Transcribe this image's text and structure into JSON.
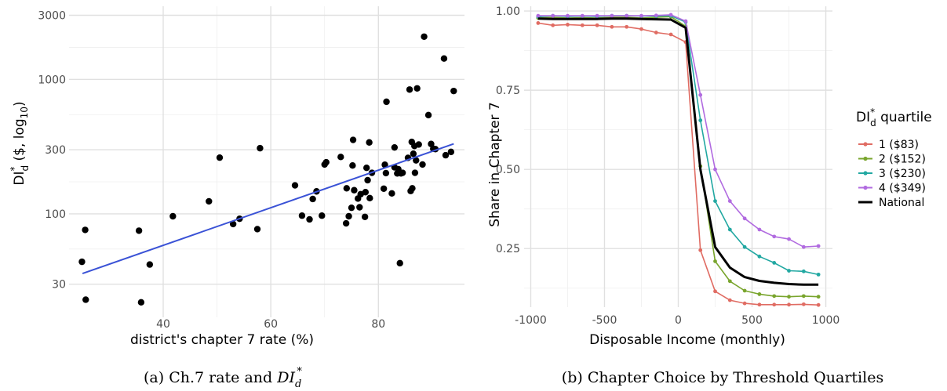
{
  "chart_data": [
    {
      "type": "scatter",
      "panel_caption": "(a) Ch.7 rate and ",
      "caption_math": "DI",
      "caption_math_sub": "d",
      "caption_math_sup": "*",
      "xlabel": "district's chapter 7 rate (%)",
      "ylabel": {
        "base": "DI",
        "sup": "*",
        "sub": "d",
        "rest": " ($, log",
        "log_sub": "10",
        "close": ")"
      },
      "x_ticks": [
        40,
        60,
        80
      ],
      "y_ticks": [
        30,
        100,
        300,
        1000,
        3000
      ],
      "y_tick_labels": [
        "30",
        "100",
        "300",
        "1000",
        "3000"
      ],
      "xlim": [
        22.5,
        96
      ],
      "ylim": [
        17,
        3500
      ],
      "y_scale": "log10",
      "points": [
        [
          24.9,
          44
        ],
        [
          25.5,
          76
        ],
        [
          25.6,
          23
        ],
        [
          35.5,
          75
        ],
        [
          35.9,
          22
        ],
        [
          37.5,
          42
        ],
        [
          41.8,
          96
        ],
        [
          48.5,
          124
        ],
        [
          50.5,
          262
        ],
        [
          53,
          84
        ],
        [
          54.2,
          92
        ],
        [
          57.5,
          77
        ],
        [
          58,
          308
        ],
        [
          64.5,
          163
        ],
        [
          65.8,
          97
        ],
        [
          67.2,
          91
        ],
        [
          67.8,
          129
        ],
        [
          68.5,
          147
        ],
        [
          69.5,
          97
        ],
        [
          70,
          233
        ],
        [
          70.3,
          242
        ],
        [
          73,
          265
        ],
        [
          74,
          85
        ],
        [
          74.1,
          155
        ],
        [
          74.5,
          96
        ],
        [
          75,
          111
        ],
        [
          75.2,
          229
        ],
        [
          75.3,
          355
        ],
        [
          75.5,
          150
        ],
        [
          76.2,
          130
        ],
        [
          76.5,
          112
        ],
        [
          76.7,
          140
        ],
        [
          77.5,
          95
        ],
        [
          77.6,
          145
        ],
        [
          77.8,
          220
        ],
        [
          78,
          178
        ],
        [
          78.3,
          340
        ],
        [
          78.4,
          131
        ],
        [
          78.8,
          202
        ],
        [
          81,
          154
        ],
        [
          81.2,
          232
        ],
        [
          81.4,
          201
        ],
        [
          81.5,
          682
        ],
        [
          82.5,
          142
        ],
        [
          83,
          312
        ],
        [
          83,
          222
        ],
        [
          83.5,
          200
        ],
        [
          83.7,
          215
        ],
        [
          84,
          43
        ],
        [
          84.2,
          200
        ],
        [
          84.5,
          202
        ],
        [
          85.5,
          261
        ],
        [
          85.8,
          841
        ],
        [
          86,
          148
        ],
        [
          86.2,
          343
        ],
        [
          86.3,
          155
        ],
        [
          86.5,
          280
        ],
        [
          86.7,
          320
        ],
        [
          86.8,
          202
        ],
        [
          87,
          250
        ],
        [
          87.2,
          858
        ],
        [
          87.5,
          328
        ],
        [
          88.2,
          233
        ],
        [
          88.5,
          2080
        ],
        [
          89.3,
          543
        ],
        [
          89.8,
          331
        ],
        [
          90.2,
          305
        ],
        [
          90.6,
          303
        ],
        [
          92.2,
          1430
        ],
        [
          92.5,
          273
        ],
        [
          93.5,
          289
        ],
        [
          94,
          820
        ]
      ],
      "fit_line": {
        "x": [
          25,
          94
        ],
        "y": [
          36,
          332
        ],
        "color": "#3a52d6"
      },
      "point_color": "#000000",
      "grid": true
    },
    {
      "type": "line",
      "panel_caption": "(b) Chapter Choice by Threshold Quartiles",
      "xlabel": "Disposable Income (monthly)",
      "ylabel": "Share in Chapter 7",
      "x_ticks": [
        -1000,
        -500,
        0,
        500,
        1000
      ],
      "x_tick_labels": [
        "-1000",
        "-500",
        "0",
        "500",
        "1000"
      ],
      "y_ticks": [
        0.25,
        0.5,
        0.75,
        1.0
      ],
      "y_tick_labels": [
        "0.25",
        "0.50",
        "0.75",
        "1.00"
      ],
      "xlim": [
        -1045,
        1045
      ],
      "ylim": [
        0.065,
        1.015
      ],
      "x": [
        -950,
        -850,
        -750,
        -650,
        -550,
        -450,
        -350,
        -250,
        -150,
        -50,
        50,
        150,
        250,
        350,
        450,
        550,
        650,
        750,
        850,
        950
      ],
      "legend_title": {
        "base": "DI",
        "sup": "*",
        "sub": "d",
        "rest": " quartile"
      },
      "legend_position": "right",
      "series": [
        {
          "name": "1 ($83)",
          "color": "#e06c63",
          "markers": true,
          "values": [
            0.962,
            0.955,
            0.957,
            0.955,
            0.955,
            0.95,
            0.95,
            0.943,
            0.932,
            0.926,
            0.902,
            0.245,
            0.115,
            0.087,
            0.077,
            0.073,
            0.073,
            0.073,
            0.074,
            0.072
          ]
        },
        {
          "name": "2 ($152)",
          "color": "#79a52d",
          "markers": true,
          "values": [
            0.978,
            0.98,
            0.978,
            0.979,
            0.978,
            0.98,
            0.98,
            0.978,
            0.98,
            0.982,
            0.952,
            0.51,
            0.21,
            0.147,
            0.117,
            0.106,
            0.1,
            0.098,
            0.1,
            0.098
          ]
        },
        {
          "name": "3 ($230)",
          "color": "#22a8a2",
          "markers": true,
          "values": [
            0.982,
            0.985,
            0.983,
            0.984,
            0.983,
            0.985,
            0.985,
            0.984,
            0.984,
            0.985,
            0.965,
            0.655,
            0.4,
            0.31,
            0.255,
            0.225,
            0.205,
            0.18,
            0.178,
            0.168
          ]
        },
        {
          "name": "4 ($349)",
          "color": "#b16be0",
          "markers": true,
          "values": [
            0.985,
            0.985,
            0.985,
            0.985,
            0.985,
            0.985,
            0.985,
            0.985,
            0.986,
            0.988,
            0.968,
            0.735,
            0.5,
            0.4,
            0.345,
            0.31,
            0.288,
            0.28,
            0.255,
            0.258
          ]
        },
        {
          "name": "National",
          "color": "#000000",
          "markers": false,
          "values": [
            0.976,
            0.975,
            0.975,
            0.975,
            0.975,
            0.976,
            0.976,
            0.975,
            0.974,
            0.973,
            0.947,
            0.5,
            0.255,
            0.19,
            0.16,
            0.148,
            0.142,
            0.138,
            0.136,
            0.136
          ]
        }
      ],
      "grid": true
    }
  ]
}
